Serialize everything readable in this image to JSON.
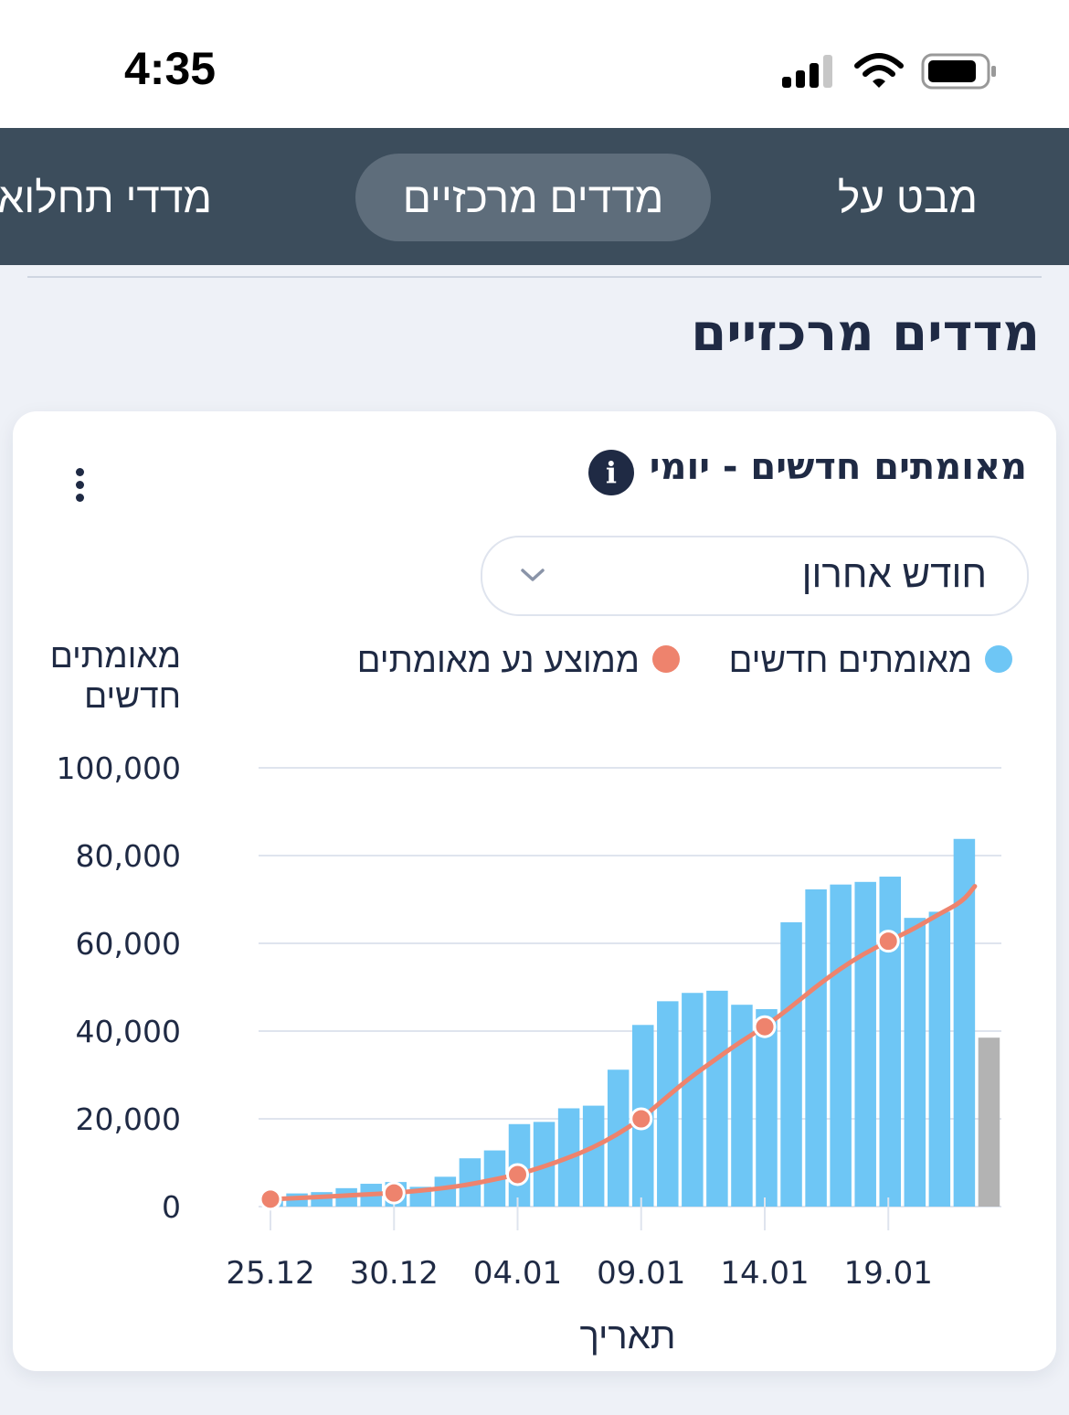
{
  "status_bar": {
    "time": "4:35"
  },
  "tabs": [
    {
      "label": "מבט על",
      "active": false
    },
    {
      "label": "מדדים מרכזיים",
      "active": true
    },
    {
      "label": "מדדי תחלואה",
      "active": false
    }
  ],
  "page_title": "מדדים מרכזיים",
  "card": {
    "title": "מאומתים חדשים - יומי",
    "info_icon_text": "i",
    "range_select": {
      "value": "חודש אחרון"
    },
    "legend": [
      {
        "label": "מאומתים חדשים",
        "color": "#6ec6f5"
      },
      {
        "label": "ממוצע נע מאומתים",
        "color": "#ee836d"
      }
    ]
  },
  "chart_data": {
    "type": "bar",
    "title": "מאומתים חדשים - יומי",
    "ylabel_lines": [
      "מאומתים",
      "חדשים"
    ],
    "xlabel": "תאריך",
    "ylim": [
      0,
      100000
    ],
    "y_ticks": [
      0,
      20000,
      40000,
      60000,
      80000,
      100000
    ],
    "y_tick_labels": [
      "0",
      "20,000",
      "40,000",
      "60,000",
      "80,000",
      "100,000"
    ],
    "x_tick_labels": [
      "25.12",
      "30.12",
      "04.01",
      "09.01",
      "14.01",
      "19.01"
    ],
    "x_tick_day_index": [
      0,
      5,
      10,
      15,
      20,
      25
    ],
    "grid": true,
    "bar_color": "#6ec6f5",
    "partial_bar_color": "#b3b3b3",
    "line_color": "#ee836d",
    "series": [
      {
        "name": "מאומתים חדשים",
        "type": "bar",
        "values": [
          1800,
          3000,
          3300,
          4200,
          5200,
          5600,
          4500,
          6800,
          11000,
          12800,
          18800,
          19300,
          22400,
          23000,
          31200,
          41400,
          46800,
          48700,
          49200,
          46000,
          45000,
          64800,
          72300,
          73400,
          74000,
          75200,
          65800,
          67200,
          83800,
          38500
        ],
        "partial_last": true
      },
      {
        "name": "ממוצע נע מאומתים",
        "type": "line",
        "x_day": [
          0,
          1,
          2,
          3,
          4,
          5,
          6,
          7,
          8,
          9,
          10,
          11,
          12,
          13,
          14,
          15,
          16,
          17,
          18,
          19,
          20,
          21,
          22,
          23,
          24,
          25,
          26,
          27,
          28,
          28.5
        ],
        "values": [
          1700,
          1900,
          2200,
          2500,
          2800,
          3100,
          3600,
          4200,
          5000,
          6100,
          7300,
          9000,
          11000,
          13300,
          16300,
          20000,
          24800,
          29500,
          33500,
          37500,
          41000,
          45200,
          49800,
          54000,
          57600,
          60500,
          63200,
          66500,
          69500,
          73000
        ],
        "markers_at_day": [
          0,
          5,
          10,
          15,
          20,
          25
        ]
      }
    ]
  }
}
